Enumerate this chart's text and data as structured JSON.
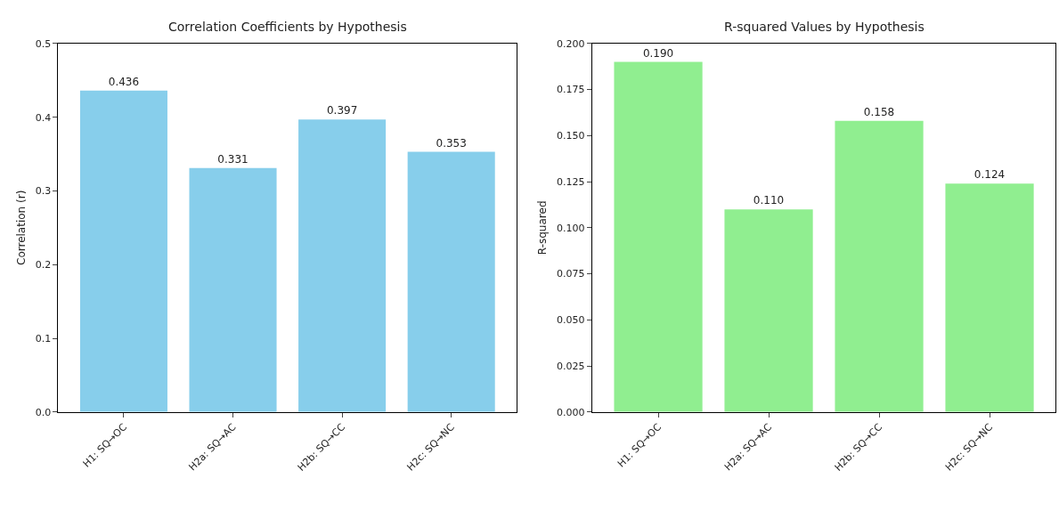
{
  "chart_data": [
    {
      "type": "bar",
      "title": "Correlation Coefficients by Hypothesis",
      "ylabel": "Correlation (r)",
      "categories": [
        "H1: SQ→OC",
        "H2a: SQ→AC",
        "H2b: SQ→CC",
        "H2c: SQ→NC"
      ],
      "values": [
        0.436,
        0.331,
        0.397,
        0.353
      ],
      "value_labels": [
        "0.436",
        "0.331",
        "0.397",
        "0.353"
      ],
      "color": "#87ceeb",
      "ylim": [
        0,
        0.5
      ],
      "yticks": [
        {
          "value": 0,
          "label": "0.0"
        },
        {
          "value": 0.1,
          "label": "0.1"
        },
        {
          "value": 0.2,
          "label": "0.2"
        },
        {
          "value": 0.3,
          "label": "0.3"
        },
        {
          "value": 0.4,
          "label": "0.4"
        },
        {
          "value": 0.5,
          "label": "0.5"
        }
      ]
    },
    {
      "type": "bar",
      "title": "R-squared Values by Hypothesis",
      "ylabel": "R-squared",
      "categories": [
        "H1: SQ→OC",
        "H2a: SQ→AC",
        "H2b: SQ→CC",
        "H2c: SQ→NC"
      ],
      "values": [
        0.19,
        0.11,
        0.158,
        0.124
      ],
      "value_labels": [
        "0.190",
        "0.110",
        "0.158",
        "0.124"
      ],
      "color": "#90ee90",
      "ylim": [
        0,
        0.2
      ],
      "yticks": [
        {
          "value": 0,
          "label": "0.000"
        },
        {
          "value": 0.025,
          "label": "0.025"
        },
        {
          "value": 0.05,
          "label": "0.050"
        },
        {
          "value": 0.075,
          "label": "0.075"
        },
        {
          "value": 0.1,
          "label": "0.100"
        },
        {
          "value": 0.125,
          "label": "0.125"
        },
        {
          "value": 0.15,
          "label": "0.150"
        },
        {
          "value": 0.175,
          "label": "0.175"
        },
        {
          "value": 0.2,
          "label": "0.200"
        }
      ]
    }
  ]
}
